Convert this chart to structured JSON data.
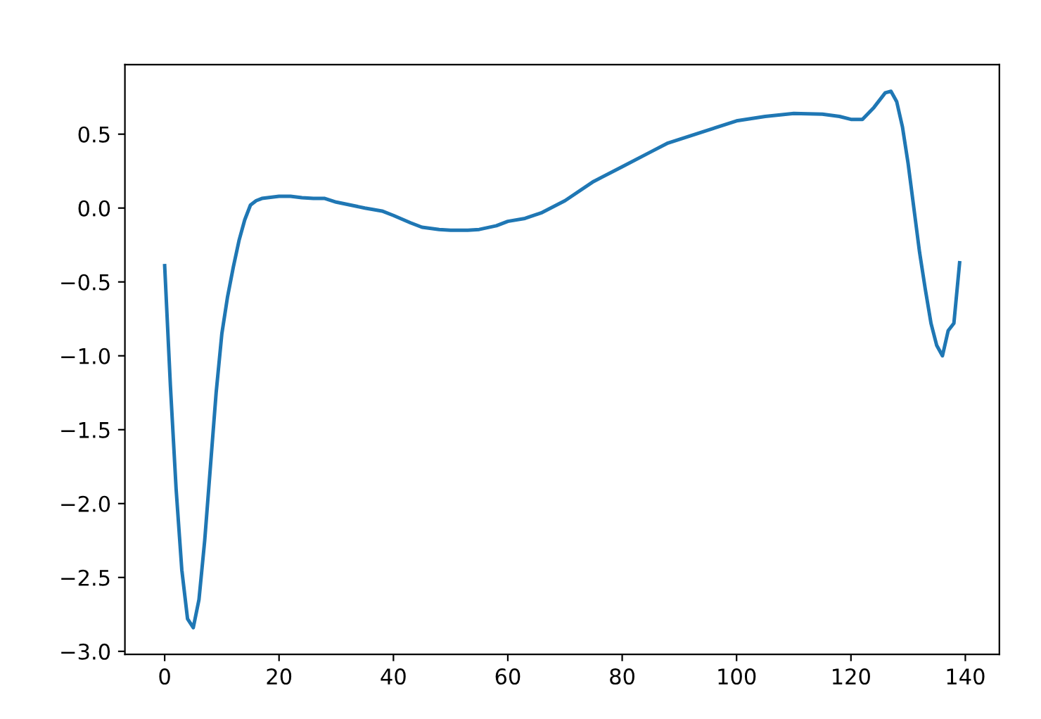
{
  "chart_data": {
    "type": "line",
    "color": "#1f77b4",
    "x": [
      0,
      1,
      2,
      3,
      4,
      5,
      6,
      7,
      8,
      9,
      10,
      11,
      12,
      13,
      14,
      15,
      16,
      17,
      18,
      20,
      22,
      24,
      26,
      28,
      30,
      35,
      38,
      40,
      43,
      45,
      48,
      50,
      53,
      55,
      58,
      60,
      63,
      66,
      70,
      75,
      80,
      85,
      88,
      92,
      96,
      100,
      105,
      110,
      115,
      118,
      120,
      122,
      124,
      126,
      127,
      128,
      129,
      130,
      131,
      132,
      133,
      134,
      135,
      136,
      137,
      138,
      139
    ],
    "values": [
      -0.39,
      -1.2,
      -1.9,
      -2.45,
      -2.78,
      -2.84,
      -2.65,
      -2.25,
      -1.75,
      -1.25,
      -0.85,
      -0.6,
      -0.4,
      -0.22,
      -0.08,
      0.02,
      0.05,
      0.065,
      0.07,
      0.08,
      0.08,
      0.07,
      0.065,
      0.065,
      0.04,
      0.0,
      -0.02,
      -0.05,
      -0.1,
      -0.13,
      -0.145,
      -0.15,
      -0.15,
      -0.145,
      -0.12,
      -0.09,
      -0.07,
      -0.03,
      0.05,
      0.18,
      0.28,
      0.38,
      0.44,
      0.49,
      0.54,
      0.59,
      0.62,
      0.64,
      0.635,
      0.62,
      0.6,
      0.6,
      0.68,
      0.78,
      0.79,
      0.72,
      0.55,
      0.3,
      0.0,
      -0.3,
      -0.55,
      -0.78,
      -0.93,
      -1.0,
      -0.83,
      -0.78,
      -0.37
    ],
    "xlim": [
      -6.95,
      145.95
    ],
    "ylim": [
      -3.02,
      0.97
    ],
    "xticks": [
      0,
      20,
      40,
      60,
      80,
      100,
      120,
      140
    ],
    "yticks": [
      {
        "value": -3.0,
        "label": "−3.0"
      },
      {
        "value": -2.5,
        "label": "−2.5"
      },
      {
        "value": -2.0,
        "label": "−2.0"
      },
      {
        "value": -1.5,
        "label": "−1.5"
      },
      {
        "value": -1.0,
        "label": "−1.0"
      },
      {
        "value": -0.5,
        "label": "−0.5"
      },
      {
        "value": 0.0,
        "label": "0.0"
      },
      {
        "value": 0.5,
        "label": "0.5"
      }
    ],
    "grid": false
  }
}
